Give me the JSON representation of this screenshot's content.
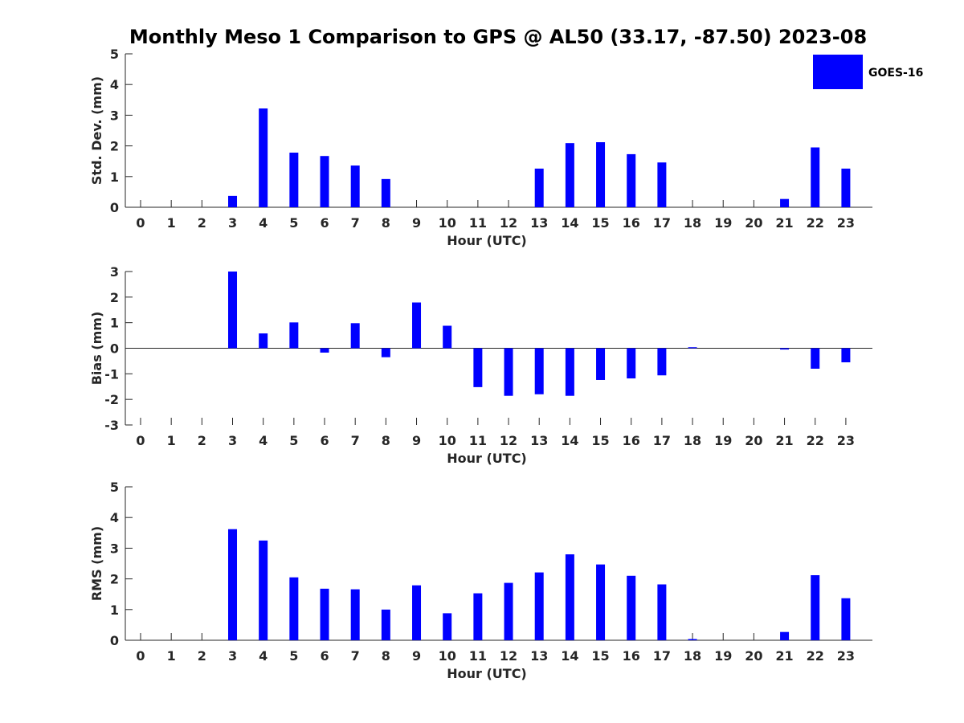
{
  "title": "Monthly Meso 1 Comparison to GPS @ AL50 (33.17, -87.50) 2023-08",
  "legend": {
    "label": "GOES-16",
    "color": "#0000ff"
  },
  "chart_data": [
    {
      "type": "bar",
      "name": "std-dev",
      "xlabel": "Hour (UTC)",
      "ylabel": "Std. Dev. (mm)",
      "categories": [
        "0",
        "1",
        "2",
        "3",
        "4",
        "5",
        "6",
        "7",
        "8",
        "9",
        "10",
        "11",
        "12",
        "13",
        "14",
        "15",
        "16",
        "17",
        "18",
        "19",
        "20",
        "21",
        "22",
        "23"
      ],
      "values": [
        0,
        0,
        0,
        0.37,
        3.22,
        1.78,
        1.67,
        1.36,
        0.92,
        0,
        0,
        0,
        0,
        1.26,
        2.09,
        2.12,
        1.73,
        1.46,
        0,
        0,
        0,
        0.27,
        1.95,
        1.26
      ],
      "ylim": [
        0,
        5
      ],
      "yticks": [
        "0",
        "1",
        "2",
        "3",
        "4",
        "5"
      ],
      "series_name": "GOES-16",
      "color": "#0000ff"
    },
    {
      "type": "bar",
      "name": "bias",
      "xlabel": "Hour (UTC)",
      "ylabel": "Bias (mm)",
      "categories": [
        "0",
        "1",
        "2",
        "3",
        "4",
        "5",
        "6",
        "7",
        "8",
        "9",
        "10",
        "11",
        "12",
        "13",
        "14",
        "15",
        "16",
        "17",
        "18",
        "19",
        "20",
        "21",
        "22",
        "23"
      ],
      "values": [
        0,
        0,
        0,
        3.0,
        0.58,
        1.01,
        -0.17,
        0.98,
        -0.35,
        1.79,
        0.88,
        -1.52,
        -1.86,
        -1.8,
        -1.86,
        -1.24,
        -1.18,
        -1.06,
        0.04,
        0,
        0,
        -0.05,
        -0.8,
        -0.55
      ],
      "ylim": [
        -3,
        3
      ],
      "yticks": [
        "-3",
        "-2",
        "-1",
        "0",
        "1",
        "2",
        "3"
      ],
      "series_name": "GOES-16",
      "color": "#0000ff"
    },
    {
      "type": "bar",
      "name": "rms",
      "xlabel": "Hour (UTC)",
      "ylabel": "RMS (mm)",
      "categories": [
        "0",
        "1",
        "2",
        "3",
        "4",
        "5",
        "6",
        "7",
        "8",
        "9",
        "10",
        "11",
        "12",
        "13",
        "14",
        "15",
        "16",
        "17",
        "18",
        "19",
        "20",
        "21",
        "22",
        "23"
      ],
      "values": [
        0,
        0,
        0,
        3.62,
        3.25,
        2.05,
        1.68,
        1.66,
        1.0,
        1.79,
        0.88,
        1.53,
        1.87,
        2.21,
        2.8,
        2.47,
        2.1,
        1.82,
        0.04,
        0,
        0,
        0.27,
        2.12,
        1.37
      ],
      "ylim": [
        0,
        5
      ],
      "yticks": [
        "0",
        "1",
        "2",
        "3",
        "4",
        "5"
      ],
      "series_name": "GOES-16",
      "color": "#0000ff"
    }
  ]
}
